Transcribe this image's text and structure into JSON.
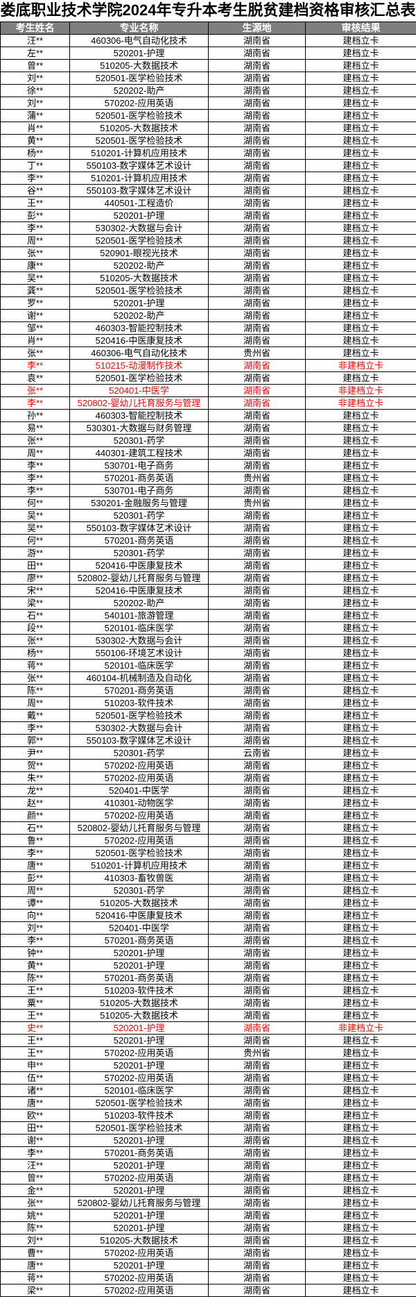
{
  "title": "娄底职业技术学院2024年专升本考生脱贫建档资格审核汇总表",
  "colors": {
    "header_bg": "#7F7F7F",
    "header_text": "#FFFFFF",
    "row_text": "#000000",
    "flagged_text": "#FF0000",
    "border": "#000000"
  },
  "result_values": {
    "pass": "建档立卡",
    "fail": "非建档立卡"
  },
  "table": {
    "headers": [
      "考生姓名",
      "专业名称",
      "生源地",
      "审核结果"
    ],
    "rows": [
      [
        "汪**",
        "460306-电气自动化技术",
        "湖南省",
        "建档立卡"
      ],
      [
        "左**",
        "520201-护理",
        "湖南省",
        "建档立卡"
      ],
      [
        "曾**",
        "510205-大数据技术",
        "湖南省",
        "建档立卡"
      ],
      [
        "刘**",
        "520501-医学检验技术",
        "湖南省",
        "建档立卡"
      ],
      [
        "徐**",
        "520202-助产",
        "湖南省",
        "建档立卡"
      ],
      [
        "刘**",
        "570202-应用英语",
        "湖南省",
        "建档立卡"
      ],
      [
        "蒲**",
        "520501-医学检验技术",
        "湖南省",
        "建档立卡"
      ],
      [
        "肖**",
        "510205-大数据技术",
        "湖南省",
        "建档立卡"
      ],
      [
        "黄**",
        "520501-医学检验技术",
        "湖南省",
        "建档立卡"
      ],
      [
        "杨**",
        "510201-计算机应用技术",
        "湖南省",
        "建档立卡"
      ],
      [
        "丁**",
        "550103-数字媒体艺术设计",
        "湖南省",
        "建档立卡"
      ],
      [
        "李**",
        "510201-计算机应用技术",
        "湖南省",
        "建档立卡"
      ],
      [
        "谷**",
        "550103-数字媒体艺术设计",
        "湖南省",
        "建档立卡"
      ],
      [
        "王**",
        "440501-工程造价",
        "湖南省",
        "建档立卡"
      ],
      [
        "彭**",
        "520201-护理",
        "湖南省",
        "建档立卡"
      ],
      [
        "李**",
        "530302-大数据与会计",
        "湖南省",
        "建档立卡"
      ],
      [
        "周**",
        "520501-医学检验技术",
        "湖南省",
        "建档立卡"
      ],
      [
        "张**",
        "520901-眼视光技术",
        "湖南省",
        "建档立卡"
      ],
      [
        "康**",
        "520202-助产",
        "湖南省",
        "建档立卡"
      ],
      [
        "吴**",
        "510205-大数据技术",
        "湖南省",
        "建档立卡"
      ],
      [
        "龚**",
        "520501-医学检验技术",
        "湖南省",
        "建档立卡"
      ],
      [
        "罗**",
        "520201-护理",
        "湖南省",
        "建档立卡"
      ],
      [
        "谢**",
        "520202-助产",
        "湖南省",
        "建档立卡"
      ],
      [
        "邹**",
        "460303-智能控制技术",
        "湖南省",
        "建档立卡"
      ],
      [
        "肖**",
        "520416-中医康复技术",
        "湖南省",
        "建档立卡"
      ],
      [
        "张**",
        "460306-电气自动化技术",
        "贵州省",
        "建档立卡"
      ],
      [
        "李**",
        "510215-动漫制作技术",
        "湖南省",
        "非建档立卡",
        true
      ],
      [
        "袁**",
        "520501-医学检验技术",
        "湖南省",
        "建档立卡"
      ],
      [
        "张**",
        "520401-中医学",
        "湖南省",
        "非建档立卡",
        true
      ],
      [
        "李**",
        "520802-婴幼儿托育服务与管理",
        "湖南省",
        "非建档立卡",
        true
      ],
      [
        "孙**",
        "460303-智能控制技术",
        "湖南省",
        "建档立卡"
      ],
      [
        "易**",
        "530301-大数据与财务管理",
        "湖南省",
        "建档立卡"
      ],
      [
        "张**",
        "520301-药学",
        "湖南省",
        "建档立卡"
      ],
      [
        "周**",
        "440301-建筑工程技术",
        "湖南省",
        "建档立卡"
      ],
      [
        "李**",
        "530701-电子商务",
        "湖南省",
        "建档立卡"
      ],
      [
        "李**",
        "570201-商务英语",
        "贵州省",
        "建档立卡"
      ],
      [
        "李**",
        "530701-电子商务",
        "湖南省",
        "建档立卡"
      ],
      [
        "何**",
        "530201-金融服务与管理",
        "贵州省",
        "建档立卡"
      ],
      [
        "吴**",
        "520301-药学",
        "湖南省",
        "建档立卡"
      ],
      [
        "吴**",
        "550103-数字媒体艺术设计",
        "湖南省",
        "建档立卡"
      ],
      [
        "何**",
        "570201-商务英语",
        "湖南省",
        "建档立卡"
      ],
      [
        "游**",
        "520301-药学",
        "湖南省",
        "建档立卡"
      ],
      [
        "田**",
        "520416-中医康复技术",
        "湖南省",
        "建档立卡"
      ],
      [
        "廖**",
        "520802-婴幼儿托育服务与管理",
        "湖南省",
        "建档立卡"
      ],
      [
        "宋**",
        "520416-中医康复技术",
        "湖南省",
        "建档立卡"
      ],
      [
        "梁**",
        "520202-助产",
        "湖南省",
        "建档立卡"
      ],
      [
        "石**",
        "540101-旅游管理",
        "湖南省",
        "建档立卡"
      ],
      [
        "段**",
        "520101-临床医学",
        "湖南省",
        "建档立卡"
      ],
      [
        "张**",
        "530302-大数据与会计",
        "湖南省",
        "建档立卡"
      ],
      [
        "杨**",
        "550106-环境艺术设计",
        "湖南省",
        "建档立卡"
      ],
      [
        "蒋**",
        "520101-临床医学",
        "湖南省",
        "建档立卡"
      ],
      [
        "张**",
        "460104-机械制造及自动化",
        "湖南省",
        "建档立卡"
      ],
      [
        "陈**",
        "570201-商务英语",
        "湖南省",
        "建档立卡"
      ],
      [
        "周**",
        "510203-软件技术",
        "湖南省",
        "建档立卡"
      ],
      [
        "戴**",
        "520501-医学检验技术",
        "湖南省",
        "建档立卡"
      ],
      [
        "李**",
        "530302-大数据与会计",
        "湖南省",
        "建档立卡"
      ],
      [
        "郭**",
        "550103-数字媒体艺术设计",
        "湖南省",
        "建档立卡"
      ],
      [
        "尹**",
        "520301-药学",
        "云南省",
        "建档立卡"
      ],
      [
        "贺**",
        "570202-应用英语",
        "湖南省",
        "建档立卡"
      ],
      [
        "朱**",
        "570202-应用英语",
        "湖南省",
        "建档立卡"
      ],
      [
        "龙**",
        "520401-中医学",
        "湖南省",
        "建档立卡"
      ],
      [
        "赵**",
        "410301-动物医学",
        "湖南省",
        "建档立卡"
      ],
      [
        "颜**",
        "570202-应用英语",
        "湖南省",
        "建档立卡"
      ],
      [
        "石**",
        "520802-婴幼儿托育服务与管理",
        "湖南省",
        "建档立卡"
      ],
      [
        "鲁**",
        "570202-应用英语",
        "湖南省",
        "建档立卡"
      ],
      [
        "李**",
        "520501-医学检验技术",
        "湖南省",
        "建档立卡"
      ],
      [
        "唐**",
        "510201-计算机应用技术",
        "湖南省",
        "建档立卡"
      ],
      [
        "彭**",
        "410303-畜牧兽医",
        "湖南省",
        "建档立卡"
      ],
      [
        "周**",
        "520301-药学",
        "湖南省",
        "建档立卡"
      ],
      [
        "谭**",
        "510205-大数据技术",
        "湖南省",
        "建档立卡"
      ],
      [
        "向**",
        "520416-中医康复技术",
        "湖南省",
        "建档立卡"
      ],
      [
        "刘**",
        "520401-中医学",
        "湖南省",
        "建档立卡"
      ],
      [
        "李**",
        "570201-商务英语",
        "湖南省",
        "建档立卡"
      ],
      [
        "钟**",
        "520201-护理",
        "湖南省",
        "建档立卡"
      ],
      [
        "黄**",
        "520201-护理",
        "湖南省",
        "建档立卡"
      ],
      [
        "陈**",
        "570201-商务英语",
        "湖南省",
        "建档立卡"
      ],
      [
        "王**",
        "510203-软件技术",
        "湖南省",
        "建档立卡"
      ],
      [
        "粟**",
        "510205-大数据技术",
        "湖南省",
        "建档立卡"
      ],
      [
        "王**",
        "510205-大数据技术",
        "湖南省",
        "建档立卡"
      ],
      [
        "史**",
        "520201-护理",
        "湖南省",
        "非建档立卡",
        true
      ],
      [
        "王**",
        "520201-护理",
        "湖南省",
        "建档立卡"
      ],
      [
        "王**",
        "570202-应用英语",
        "贵州省",
        "建档立卡"
      ],
      [
        "申**",
        "520201-护理",
        "湖南省",
        "建档立卡"
      ],
      [
        "伍**",
        "570202-应用英语",
        "湖南省",
        "建档立卡"
      ],
      [
        "诸**",
        "520101-临床医学",
        "湖南省",
        "建档立卡"
      ],
      [
        "唐**",
        "520501-医学检验技术",
        "湖南省",
        "建档立卡"
      ],
      [
        "欧**",
        "510203-软件技术",
        "湖南省",
        "建档立卡"
      ],
      [
        "田**",
        "520501-医学检验技术",
        "湖南省",
        "建档立卡"
      ],
      [
        "谢**",
        "520201-护理",
        "湖南省",
        "建档立卡"
      ],
      [
        "李**",
        "570201-商务英语",
        "湖南省",
        "建档立卡"
      ],
      [
        "汪**",
        "520201-护理",
        "湖南省",
        "建档立卡"
      ],
      [
        "曾**",
        "570202-应用英语",
        "湖南省",
        "建档立卡"
      ],
      [
        "金**",
        "520201-护理",
        "湖南省",
        "建档立卡"
      ],
      [
        "张**",
        "520802-婴幼儿托育服务与管理",
        "湖南省",
        "建档立卡"
      ],
      [
        "姚**",
        "520201-护理",
        "湖南省",
        "建档立卡"
      ],
      [
        "陈**",
        "520201-护理",
        "湖南省",
        "建档立卡"
      ],
      [
        "刘**",
        "510205-大数据技术",
        "湖南省",
        "建档立卡"
      ],
      [
        "曹**",
        "570202-应用英语",
        "湖南省",
        "建档立卡"
      ],
      [
        "唐**",
        "520201-护理",
        "湖南省",
        "建档立卡"
      ],
      [
        "蒋**",
        "570202-应用英语",
        "湖南省",
        "建档立卡"
      ],
      [
        "梁**",
        "570202-应用英语",
        "湖南省",
        "建档立卡"
      ]
    ]
  }
}
